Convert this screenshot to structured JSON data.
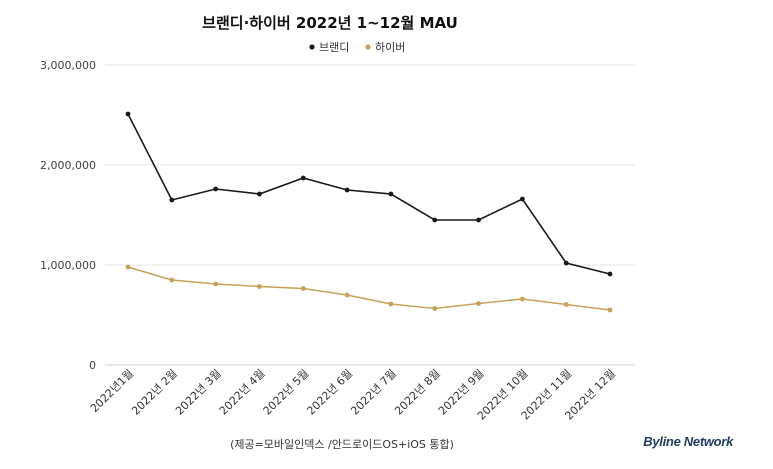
{
  "chart_data": {
    "type": "line",
    "title": "브랜디·하이버 2022년 1~12월 MAU",
    "categories": [
      "2022년1월",
      "2022년 2월",
      "2022년 3월",
      "2022년 4월",
      "2022년 5월",
      "2022년 6월",
      "2022년 7월",
      "2022년 8월",
      "2022년 9월",
      "2022년 10월",
      "2022년 11월",
      "2022년 12월"
    ],
    "series": [
      {
        "name": "브랜디",
        "color": "#1a1a1a",
        "values": [
          2510000,
          1650000,
          1760000,
          1710000,
          1870000,
          1750000,
          1710000,
          1450000,
          1450000,
          1660000,
          1020000,
          910000
        ]
      },
      {
        "name": "하이버",
        "color": "#c9a25a",
        "values": [
          980000,
          850000,
          810000,
          785000,
          765000,
          700000,
          610000,
          565000,
          615000,
          660000,
          605000,
          550000
        ]
      }
    ],
    "ylim": [
      0,
      3000000
    ],
    "yticks": [
      {
        "value": 0,
        "label": "0"
      },
      {
        "value": 1000000,
        "label": "1,000,000"
      },
      {
        "value": 2000000,
        "label": "2,000,000"
      },
      {
        "value": 3000000,
        "label": "3,000,000"
      }
    ],
    "grid": true,
    "legend": "top-center"
  },
  "source_note": "(제공=모바일인덱스 /안드로이드OS+iOS 통합)",
  "brand": "Byline Network"
}
